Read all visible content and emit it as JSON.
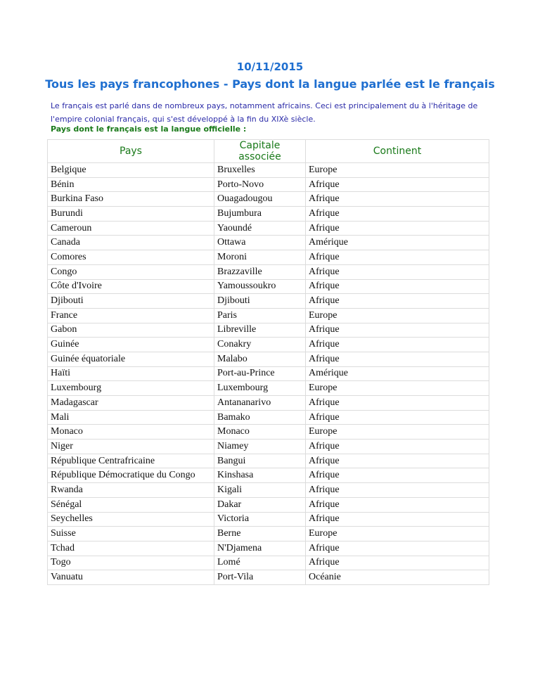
{
  "date": "10/11/2015",
  "title": "Tous les pays francophones - Pays dont la langue parlée est le français",
  "intro": "Le français est parlé dans de nombreux pays, notamment africains. Ceci est principalement du à l'héritage de l'empire colonial français, qui s'est développé à la fin du XIXè siècle.",
  "subtitle": "Pays dont le français est la langue officielle :",
  "table": {
    "headers": [
      "Pays",
      "Capitale associée",
      "Continent"
    ],
    "rows": [
      [
        "Belgique",
        "Bruxelles",
        "Europe"
      ],
      [
        "Bénin",
        "Porto-Novo",
        "Afrique"
      ],
      [
        "Burkina Faso",
        "Ouagadougou",
        "Afrique"
      ],
      [
        "Burundi",
        "Bujumbura",
        "Afrique"
      ],
      [
        "Cameroun",
        "Yaoundé",
        "Afrique"
      ],
      [
        "Canada",
        "Ottawa",
        "Amérique"
      ],
      [
        "Comores",
        "Moroni",
        "Afrique"
      ],
      [
        "Congo",
        "Brazzaville",
        "Afrique"
      ],
      [
        "Côte d'Ivoire",
        "Yamoussoukro",
        "Afrique"
      ],
      [
        "Djibouti",
        "Djibouti",
        "Afrique"
      ],
      [
        "France",
        "Paris",
        "Europe"
      ],
      [
        "Gabon",
        "Libreville",
        "Afrique"
      ],
      [
        "Guinée",
        "Conakry",
        "Afrique"
      ],
      [
        "Guinée équatoriale",
        "Malabo",
        "Afrique"
      ],
      [
        "Haïti",
        "Port-au-Prince",
        "Amérique"
      ],
      [
        "Luxembourg",
        "Luxembourg",
        "Europe"
      ],
      [
        "Madagascar",
        "Antananarivo",
        "Afrique"
      ],
      [
        "Mali",
        "Bamako",
        "Afrique"
      ],
      [
        "Monaco",
        "Monaco",
        "Europe"
      ],
      [
        "Niger",
        "Niamey",
        "Afrique"
      ],
      [
        "République Centrafricaine",
        "Bangui",
        "Afrique"
      ],
      [
        "République Démocratique du Congo",
        "Kinshasa",
        "Afrique"
      ],
      [
        "Rwanda",
        "Kigali",
        "Afrique"
      ],
      [
        "Sénégal",
        "Dakar",
        "Afrique"
      ],
      [
        "Seychelles",
        "Victoria",
        "Afrique"
      ],
      [
        "Suisse",
        "Berne",
        "Europe"
      ],
      [
        "Tchad",
        "N'Djamena",
        "Afrique"
      ],
      [
        "Togo",
        "Lomé",
        "Afrique"
      ],
      [
        "Vanuatu",
        "Port-Vila",
        "Océanie"
      ]
    ]
  }
}
